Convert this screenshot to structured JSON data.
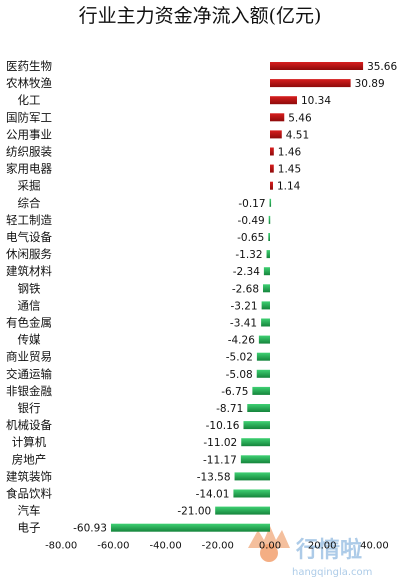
{
  "chart_data": {
    "type": "bar",
    "orientation": "horizontal",
    "title": "行业主力资金净流入额(亿元)",
    "categories": [
      "医药生物",
      "农林牧渔",
      "化工",
      "国防军工",
      "公用事业",
      "纺织服装",
      "家用电器",
      "采掘",
      "综合",
      "轻工制造",
      "电气设备",
      "休闲服务",
      "建筑材料",
      "钢铁",
      "通信",
      "有色金属",
      "传媒",
      "商业贸易",
      "交通运输",
      "非银金融",
      "银行",
      "机械设备",
      "计算机",
      "房地产",
      "建筑装饰",
      "食品饮料",
      "汽车",
      "电子"
    ],
    "values": [
      35.66,
      30.89,
      10.34,
      5.46,
      4.51,
      1.46,
      1.45,
      1.14,
      -0.17,
      -0.49,
      -0.65,
      -1.32,
      -2.34,
      -2.68,
      -3.21,
      -3.41,
      -4.26,
      -5.02,
      -5.08,
      -6.75,
      -8.71,
      -10.16,
      -11.02,
      -11.17,
      -13.58,
      -14.01,
      -21.0,
      -60.93
    ],
    "data_labels": [
      "35.66",
      "30.89",
      "10.34",
      "5.46",
      "4.51",
      "1.46",
      "1.45",
      "1.14",
      "-0.17",
      "-0.49",
      "-0.65",
      "-1.32",
      "-2.34",
      "-2.68",
      "-3.21",
      "-3.41",
      "-4.26",
      "-5.02",
      "-5.08",
      "-6.75",
      "-8.71",
      "-10.16",
      "-11.02",
      "-11.17",
      "-13.58",
      "-14.01",
      "-21.00",
      "-60.93"
    ],
    "xlim": [
      -80,
      40
    ],
    "xticks": [
      -80,
      -60,
      -40,
      -20,
      0,
      20,
      40
    ],
    "xtick_labels": [
      "-80.00",
      "-60.00",
      "-40.00",
      "-20.00",
      "0.00",
      "20.00",
      "40.00"
    ],
    "grid": false,
    "legend": "none",
    "colors": {
      "positive": "#b50f0f",
      "negative": "#1fa84e"
    }
  },
  "watermark": {
    "text": "行情啦",
    "url": "hangqingla.com"
  }
}
